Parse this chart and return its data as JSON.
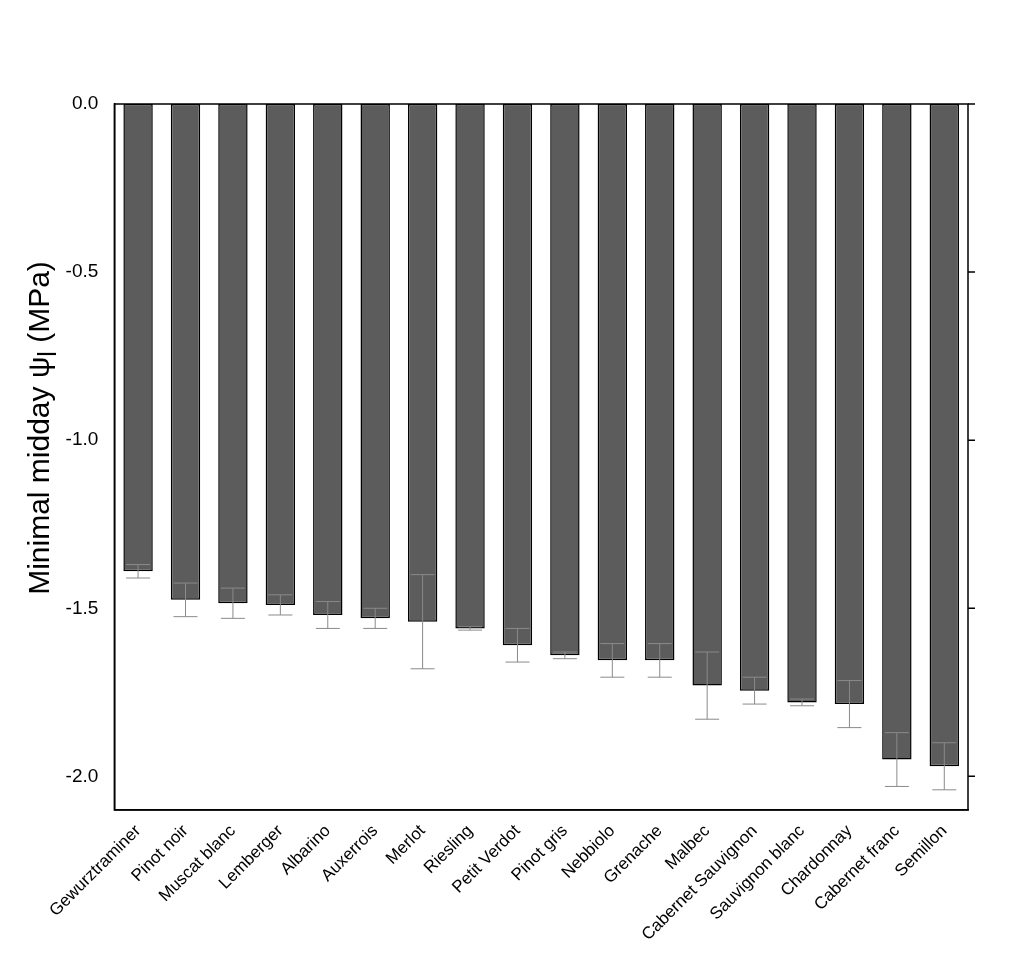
{
  "chart_data": {
    "type": "bar",
    "ylabel": "Minimal midday ψ$_{l}$ (MPa)",
    "categories": [
      "Gewurztraminer",
      "Pinot noir",
      "Muscat blanc",
      "Lemberger",
      "Albarino",
      "Auxerrois",
      "Merlot",
      "Riesling",
      "Petit Verdot",
      "Pinot gris",
      "Nebbiolo",
      "Grenache",
      "Malbec",
      "Cabernet Sauvignon",
      "Sauvignon blanc",
      "Chardonnay",
      "Cabernet franc",
      "Semillon"
    ],
    "values": [
      -1.39,
      -1.475,
      -1.485,
      -1.49,
      -1.52,
      -1.53,
      -1.54,
      -1.56,
      -1.61,
      -1.64,
      -1.655,
      -1.655,
      -1.73,
      -1.745,
      -1.78,
      -1.785,
      -1.95,
      -1.97
    ],
    "errors": [
      0.02,
      0.05,
      0.045,
      0.03,
      0.04,
      0.03,
      0.14,
      0.005,
      0.05,
      0.01,
      0.05,
      0.05,
      0.1,
      0.04,
      0.01,
      0.07,
      0.08,
      0.07
    ],
    "color": "#5c5c5c",
    "ylim": [
      -2.1,
      0
    ],
    "yticks": [
      {
        "value": -2,
        "label": "-2.0"
      },
      {
        "value": -1.5,
        "label": "-1.5"
      },
      {
        "value": -1,
        "label": "-1.0"
      },
      {
        "value": -0.5,
        "label": "-0.5"
      },
      {
        "value": 0,
        "label": "0.0"
      }
    ],
    "grid": false,
    "legend": false
  }
}
